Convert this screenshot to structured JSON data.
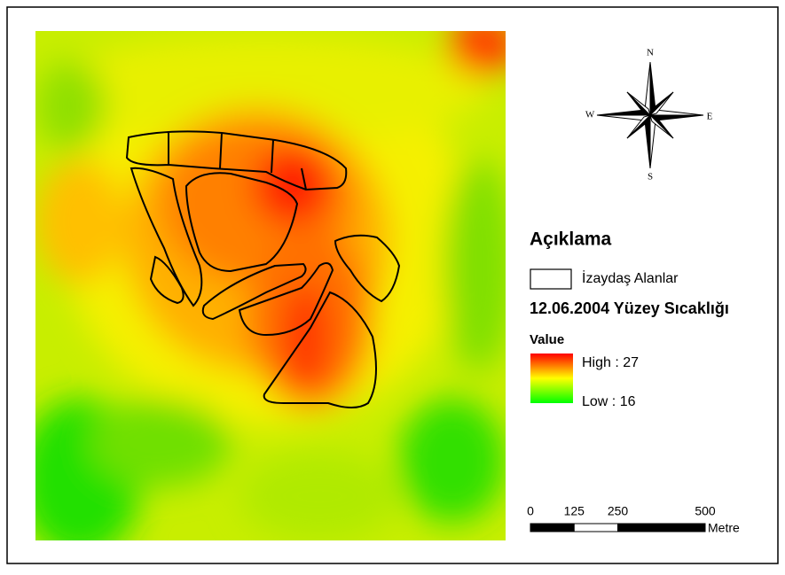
{
  "compass": {
    "north": "N",
    "west": "W",
    "east": "E",
    "south": "S"
  },
  "legend": {
    "title": "Açıklama",
    "areas_label": "İzaydaş Alanlar",
    "layer_title": "12.06.2004 Yüzey Sıcaklığı",
    "field": "Value",
    "high": "High : 27",
    "low": "Low : 16"
  },
  "scale_bar": {
    "ticks": [
      0,
      125,
      250,
      500
    ],
    "unit": "Metre"
  }
}
